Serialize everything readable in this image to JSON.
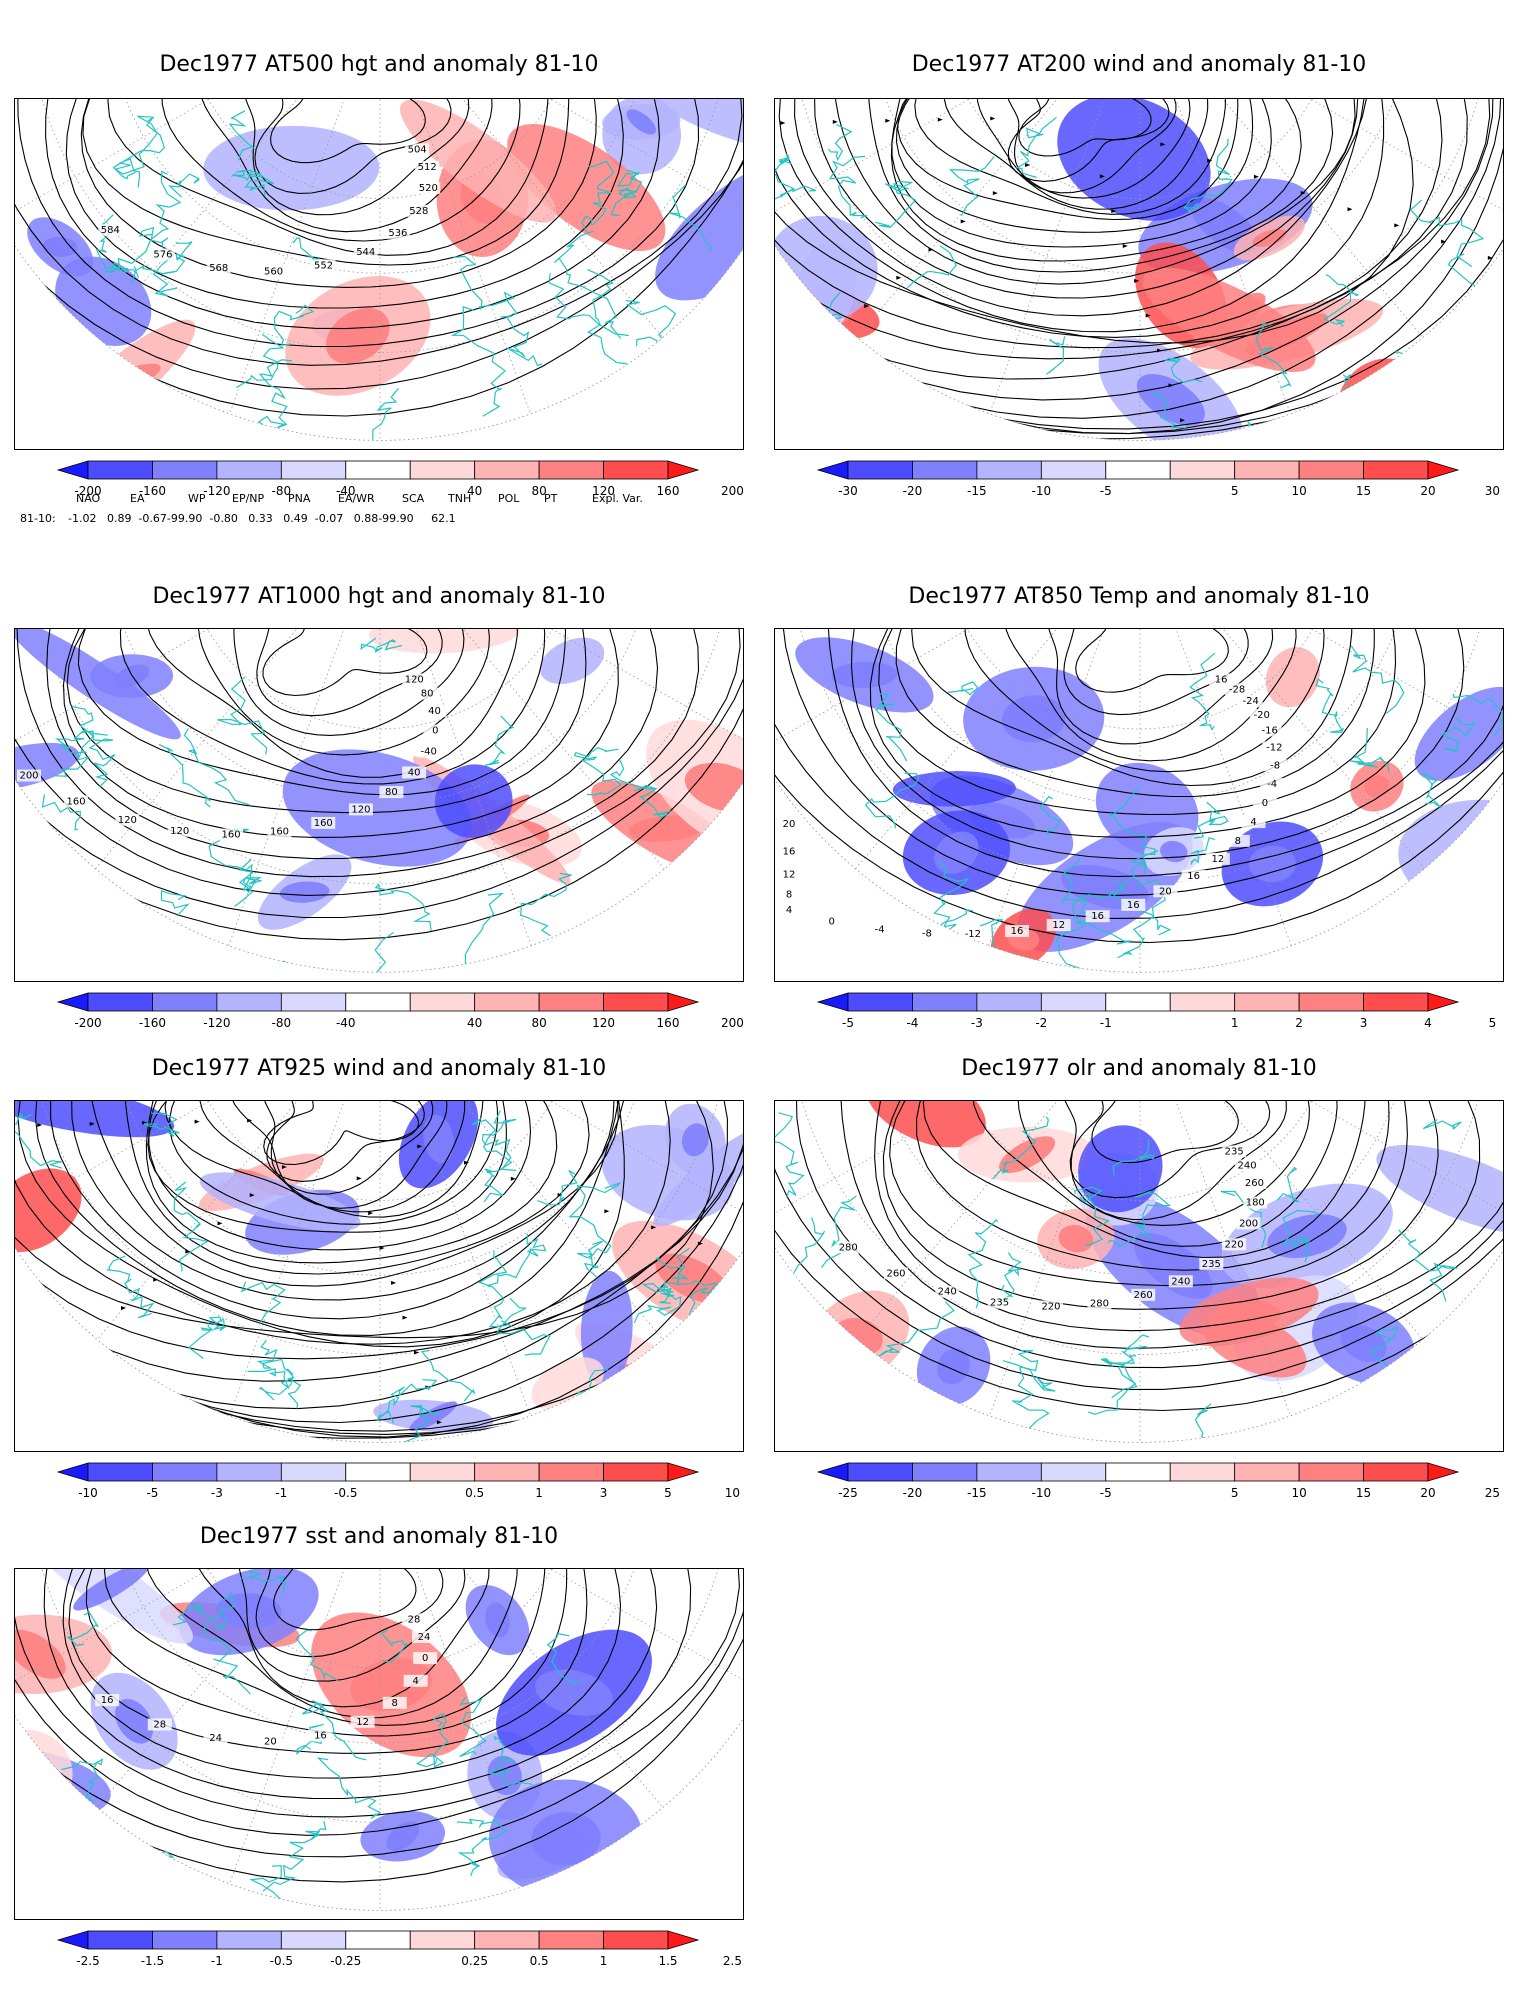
{
  "panels": [
    {
      "id": "p500",
      "title": "Dec1977 AT500 hgt and anomaly 81-10",
      "contour_labels": [
        "504",
        "512",
        "520",
        "528",
        "536",
        "544",
        "552",
        "560",
        "568",
        "576",
        "584"
      ],
      "colorbar": {
        "labels": [
          "-200",
          "-160",
          "-120",
          "-80",
          "-40",
          "40",
          "80",
          "120",
          "160",
          "200"
        ],
        "colors": [
          "#1a1aff",
          "#4d4dff",
          "#8080ff",
          "#b3b3ff",
          "#d9d9ff",
          "#ffffff",
          "#ffd9d9",
          "#ffb3b3",
          "#ff8080",
          "#ff4d4d",
          "#ff1a1a"
        ]
      }
    },
    {
      "id": "p200",
      "title": "Dec1977 AT200 wind and anomaly 81-10",
      "contour_labels": [],
      "colorbar": {
        "labels": [
          "-30",
          "-20",
          "-15",
          "-10",
          "-5",
          "5",
          "10",
          "15",
          "20",
          "30"
        ],
        "colors": [
          "#1a1aff",
          "#4d4dff",
          "#8080ff",
          "#b3b3ff",
          "#d9d9ff",
          "#ffffff",
          "#ffd9d9",
          "#ffb3b3",
          "#ff8080",
          "#ff4d4d",
          "#ff1a1a"
        ]
      }
    },
    {
      "id": "p1000",
      "title": "Dec1977 AT1000 hgt and anomaly 81-10",
      "contour_labels": [
        "120",
        "80",
        "40",
        "0",
        "-40",
        "40",
        "80",
        "120",
        "160",
        "160",
        "160",
        "120",
        "120",
        "160",
        "200"
      ],
      "colorbar": {
        "labels": [
          "-200",
          "-160",
          "-120",
          "-80",
          "-40",
          "40",
          "80",
          "120",
          "160",
          "200"
        ],
        "colors": [
          "#1a1aff",
          "#4d4dff",
          "#8080ff",
          "#b3b3ff",
          "#d9d9ff",
          "#ffffff",
          "#ffd9d9",
          "#ffb3b3",
          "#ff8080",
          "#ff4d4d",
          "#ff1a1a"
        ]
      }
    },
    {
      "id": "p850",
      "title": "Dec1977 AT850 Temp and anomaly 81-10",
      "contour_labels": [
        "16",
        "-28",
        "-24",
        "-20",
        "-16",
        "-12",
        "-8",
        "-4",
        "0",
        "4",
        "8",
        "12",
        "16",
        "20",
        "16",
        "16",
        "12",
        "16",
        "-12",
        "-8",
        "-4",
        "0",
        "4",
        "8",
        "12",
        "16",
        "20"
      ],
      "colorbar": {
        "labels": [
          "-5",
          "-4",
          "-3",
          "-2",
          "-1",
          "1",
          "2",
          "3",
          "4",
          "5"
        ],
        "colors": [
          "#1a1aff",
          "#4d4dff",
          "#8080ff",
          "#b3b3ff",
          "#d9d9ff",
          "#ffffff",
          "#ffd9d9",
          "#ffb3b3",
          "#ff8080",
          "#ff4d4d",
          "#ff1a1a"
        ]
      }
    },
    {
      "id": "p925",
      "title": "Dec1977 AT925 wind and anomaly 81-10",
      "contour_labels": [],
      "colorbar": {
        "labels": [
          "-10",
          "-5",
          "-3",
          "-1",
          "-0.5",
          "0.5",
          "1",
          "3",
          "5",
          "10"
        ],
        "colors": [
          "#1a1aff",
          "#4d4dff",
          "#8080ff",
          "#b3b3ff",
          "#d9d9ff",
          "#ffffff",
          "#ffd9d9",
          "#ffb3b3",
          "#ff8080",
          "#ff4d4d",
          "#ff1a1a"
        ]
      }
    },
    {
      "id": "polr",
      "title": "Dec1977 olr and anomaly 81-10",
      "contour_labels": [
        "235",
        "240",
        "260",
        "180",
        "200",
        "220",
        "235",
        "240",
        "260",
        "280",
        "220",
        "235",
        "240",
        "260",
        "280"
      ],
      "colorbar": {
        "labels": [
          "-25",
          "-20",
          "-15",
          "-10",
          "-5",
          "5",
          "10",
          "15",
          "20",
          "25"
        ],
        "colors": [
          "#1a1aff",
          "#4d4dff",
          "#8080ff",
          "#b3b3ff",
          "#d9d9ff",
          "#ffffff",
          "#ffd9d9",
          "#ffb3b3",
          "#ff8080",
          "#ff4d4d",
          "#ff1a1a"
        ]
      }
    },
    {
      "id": "psst",
      "title": "Dec1977 sst and anomaly 81-10",
      "contour_labels": [
        "28",
        "24",
        "0",
        "4",
        "8",
        "12",
        "16",
        "20",
        "24",
        "28",
        "16"
      ],
      "colorbar": {
        "labels": [
          "-2.5",
          "-1.5",
          "-1",
          "-0.5",
          "-0.25",
          "0.25",
          "0.5",
          "1",
          "1.5",
          "2.5"
        ],
        "colors": [
          "#1a1aff",
          "#4d4dff",
          "#8080ff",
          "#b3b3ff",
          "#d9d9ff",
          "#ffffff",
          "#ffd9d9",
          "#ffb3b3",
          "#ff8080",
          "#ff4d4d",
          "#ff1a1a"
        ]
      }
    }
  ],
  "teleconnections": {
    "headers": [
      "NAO",
      "EA",
      "WP",
      "EP/NP",
      "PNA",
      "EA/WR",
      "SCA",
      "TNH",
      "POL",
      "PT",
      "Expl. Var."
    ],
    "row_label": "81-10:",
    "values_text": "-1.02   0.89  -0.67-99.90  -0.80   0.33   0.49  -0.07   0.88-99.90     62.1"
  }
}
